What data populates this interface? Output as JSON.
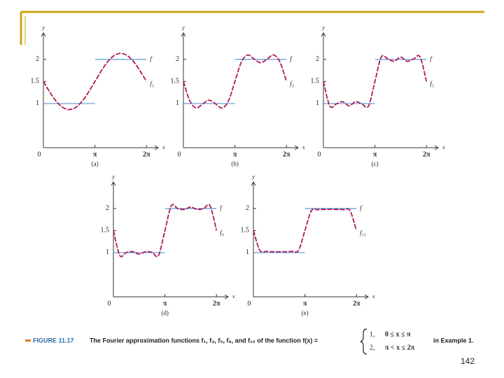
{
  "chart_data": [
    {
      "type": "line",
      "label": "(a)",
      "xlabel": "x",
      "ylabel": "y",
      "xlim": [
        0,
        7
      ],
      "ylim": [
        0,
        2.6
      ],
      "xticks": [
        0,
        {
          "value": 3.1416,
          "label": "π"
        },
        {
          "value": 6.2832,
          "label": "2π"
        }
      ],
      "yticks": [
        1,
        1.5,
        2
      ],
      "x": [
        0,
        0.3927,
        0.7854,
        1.1781,
        1.5708,
        1.9635,
        2.3562,
        2.7489,
        3.1416,
        3.5343,
        3.927,
        4.3197,
        4.7124,
        5.1051,
        5.4978,
        5.8905,
        6.2832
      ],
      "series": [
        {
          "name": "f",
          "color": "#5b9bd5",
          "x": [
            0,
            3.1416,
            3.1416,
            3.1416,
            6.2832
          ],
          "values": [
            1,
            1,
            null,
            2,
            2
          ]
        },
        {
          "name": "f₁",
          "color": "#b0185a",
          "values": [
            1.5,
            1.256,
            1.05,
            0.912,
            0.863,
            0.912,
            1.05,
            1.256,
            1.5,
            1.744,
            1.95,
            2.088,
            2.137,
            2.088,
            1.95,
            1.744,
            1.5
          ]
        }
      ]
    },
    {
      "type": "line",
      "label": "(b)",
      "xlabel": "x",
      "ylabel": "y",
      "xlim": [
        0,
        7
      ],
      "ylim": [
        0,
        2.6
      ],
      "xticks": [
        0,
        {
          "value": 3.1416,
          "label": "π"
        },
        {
          "value": 6.2832,
          "label": "2π"
        }
      ],
      "yticks": [
        1,
        1.5,
        2
      ],
      "x": [
        0,
        0.3927,
        0.7854,
        1.1781,
        1.5708,
        1.9635,
        2.3562,
        2.7489,
        3.1416,
        3.5343,
        3.927,
        4.3197,
        4.7124,
        5.1051,
        5.4978,
        5.8905,
        6.2832
      ],
      "series": [
        {
          "name": "f",
          "color": "#5b9bd5",
          "x": [
            0,
            3.1416,
            3.1416,
            3.1416,
            6.2832
          ],
          "values": [
            1,
            1,
            null,
            2,
            2
          ]
        },
        {
          "name": "f₃",
          "color": "#b0185a",
          "values": [
            1.5,
            1.06,
            0.9,
            0.993,
            1.076,
            0.993,
            0.9,
            1.06,
            1.5,
            1.94,
            2.1,
            2.007,
            1.924,
            2.007,
            2.1,
            1.94,
            1.5
          ]
        }
      ]
    },
    {
      "type": "line",
      "label": "(c)",
      "xlabel": "x",
      "ylabel": "y",
      "xlim": [
        0,
        7
      ],
      "ylim": [
        0,
        2.6
      ],
      "xticks": [
        0,
        {
          "value": 3.1416,
          "label": "π"
        },
        {
          "value": 6.2832,
          "label": "2π"
        }
      ],
      "yticks": [
        1,
        1.5,
        2
      ],
      "x": [
        0,
        0.3927,
        0.7854,
        1.1781,
        1.5708,
        1.9635,
        2.3562,
        2.7489,
        3.1416,
        3.5343,
        3.927,
        4.3197,
        4.7124,
        5.1051,
        5.4978,
        5.8905,
        6.2832
      ],
      "series": [
        {
          "name": "f",
          "color": "#5b9bd5",
          "x": [
            0,
            3.1416,
            3.1416,
            3.1416,
            6.2832
          ],
          "values": [
            1,
            1,
            null,
            2,
            2
          ]
        },
        {
          "name": "f₅",
          "color": "#b0185a",
          "values": [
            1.5,
            0.943,
            0.99,
            1.042,
            0.948,
            1.042,
            0.99,
            0.943,
            1.5,
            2.057,
            2.01,
            1.958,
            2.052,
            1.958,
            2.01,
            2.057,
            1.5
          ]
        }
      ]
    },
    {
      "type": "line",
      "label": "(d)",
      "xlabel": "x",
      "ylabel": "y",
      "xlim": [
        0,
        7
      ],
      "ylim": [
        0,
        2.6
      ],
      "xticks": [
        0,
        {
          "value": 3.1416,
          "label": "π"
        },
        {
          "value": 6.2832,
          "label": "2π"
        }
      ],
      "yticks": [
        1,
        1.5,
        2
      ],
      "x": [
        0,
        0.3927,
        0.7854,
        1.1781,
        1.5708,
        1.9635,
        2.3562,
        2.7489,
        3.1416,
        3.5343,
        3.927,
        4.3197,
        4.7124,
        5.1051,
        5.4978,
        5.8905,
        6.2832
      ],
      "series": [
        {
          "name": "f",
          "color": "#5b9bd5",
          "x": [
            0,
            3.1416,
            3.1416,
            3.1416,
            6.2832
          ],
          "values": [
            1,
            1,
            null,
            2,
            2
          ]
        },
        {
          "name": "f₉",
          "color": "#b0185a",
          "values": [
            1.5,
            0.935,
            1.004,
            1.023,
            0.968,
            1.023,
            1.004,
            0.935,
            1.5,
            2.065,
            1.996,
            1.977,
            2.032,
            1.977,
            1.996,
            2.065,
            1.5
          ]
        }
      ]
    },
    {
      "type": "line",
      "label": "(e)",
      "xlabel": "x",
      "ylabel": "y",
      "xlim": [
        0,
        7
      ],
      "ylim": [
        0,
        2.6
      ],
      "xticks": [
        0,
        {
          "value": 3.1416,
          "label": "π"
        },
        {
          "value": 6.2832,
          "label": "2π"
        }
      ],
      "yticks": [
        1,
        1.5,
        2
      ],
      "x": [
        0,
        0.3927,
        0.7854,
        1.1781,
        1.5708,
        1.9635,
        2.3562,
        2.7489,
        3.1416,
        3.5343,
        3.927,
        4.3197,
        4.7124,
        5.1051,
        5.4978,
        5.8905,
        6.2832
      ],
      "series": [
        {
          "name": "f",
          "color": "#5b9bd5",
          "x": [
            0,
            3.1416,
            3.1416,
            3.1416,
            6.2832
          ],
          "values": [
            1,
            1,
            null,
            2,
            2
          ]
        },
        {
          "name": "f₁₅",
          "color": "#b0185a",
          "values": [
            1.5,
            1.05,
            1.028,
            1.021,
            1.02,
            1.021,
            1.028,
            1.05,
            1.5,
            1.95,
            1.972,
            1.979,
            1.98,
            1.979,
            1.972,
            1.95,
            1.5
          ]
        }
      ]
    }
  ],
  "caption": {
    "figure_label": "FIGURE 11.17",
    "text": "The Fourier approximation functions f₁, f₃, f₅, f₉, and f₁₅ of the function f(x) =",
    "pieces": [
      [
        "1,",
        "0 ≤ x ≤ π"
      ],
      [
        "2,",
        "π < x ≤ 2π"
      ]
    ],
    "end": "in Example 1."
  },
  "page_number": "142"
}
